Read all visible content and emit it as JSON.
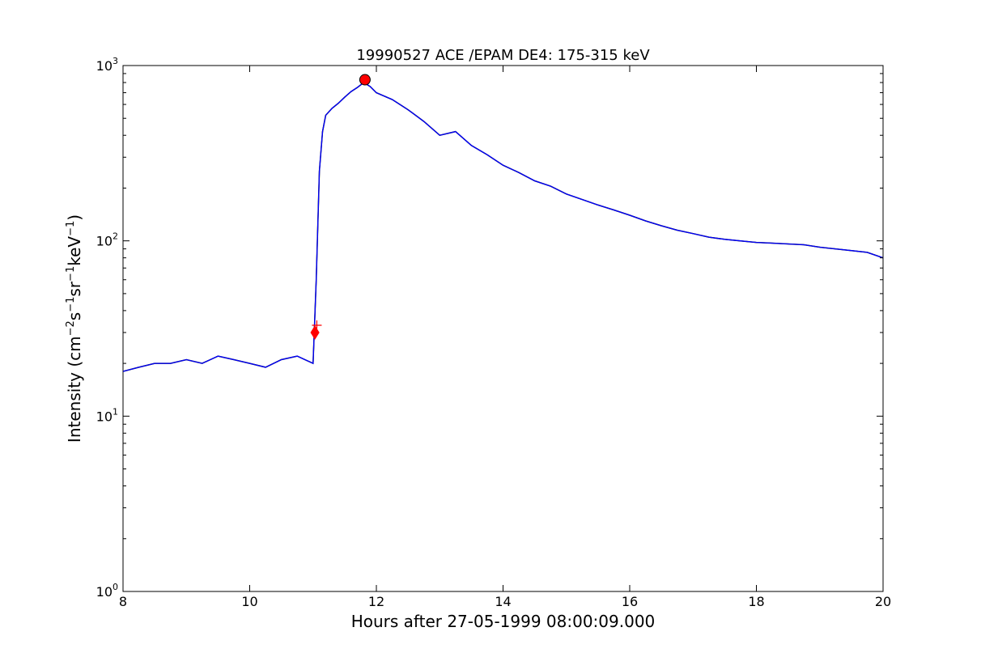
{
  "chart_data": {
    "type": "line",
    "title": "19990527 ACE /EPAM DE4: 175-315 keV",
    "xlabel": "Hours after 27-05-1999 08:00:09.000",
    "ylabel": "Intensity (cm^-2 s^-1 sr^-1 keV^-1)",
    "ylabel_parts": {
      "prefix": "Intensity (cm",
      "exp1": "−2",
      "mid1": "s",
      "exp2": "−1",
      "mid2": "sr",
      "exp3": "−1",
      "mid3": "keV",
      "exp4": "−1",
      "suffix": ")"
    },
    "xlim": [
      8,
      20
    ],
    "ylim": [
      1,
      1000
    ],
    "yscale": "log",
    "grid": false,
    "x_ticks": [
      8,
      10,
      12,
      14,
      16,
      18,
      20
    ],
    "x_tick_labels": [
      "8",
      "10",
      "12",
      "14",
      "16",
      "18",
      "20"
    ],
    "y_ticks": [
      1,
      10,
      100,
      1000
    ],
    "y_tick_labels": [
      {
        "base": "10",
        "exp": "0"
      },
      {
        "base": "10",
        "exp": "1"
      },
      {
        "base": "10",
        "exp": "2"
      },
      {
        "base": "10",
        "exp": "3"
      }
    ],
    "series": [
      {
        "role": "raw",
        "color": "#000000",
        "x": [
          8.0,
          8.25,
          8.5,
          8.75,
          9.0,
          9.25,
          9.5,
          9.75,
          10.0,
          10.25,
          10.5,
          10.75,
          11.0,
          11.05,
          11.1,
          11.15,
          11.2,
          11.3,
          11.4,
          11.5,
          11.6,
          11.7,
          11.8,
          11.9,
          12.0,
          12.25,
          12.5,
          12.75,
          13.0,
          13.25,
          13.5,
          13.75,
          14.0,
          14.25,
          14.5,
          14.75,
          15.0,
          15.25,
          15.5,
          15.75,
          16.0,
          16.25,
          16.5,
          16.75,
          17.0,
          17.25,
          17.5,
          17.75,
          18.0,
          18.25,
          18.5,
          18.75,
          19.0,
          19.25,
          19.5,
          19.75,
          20.0
        ],
        "y": [
          18,
          19,
          20,
          20,
          21,
          20,
          22,
          21,
          20,
          19,
          21,
          22,
          20,
          60,
          250,
          420,
          520,
          570,
          610,
          660,
          710,
          750,
          800,
          760,
          700,
          640,
          560,
          480,
          400,
          420,
          350,
          310,
          270,
          245,
          220,
          205,
          185,
          172,
          160,
          150,
          140,
          130,
          122,
          115,
          110,
          105,
          102,
          100,
          98,
          97,
          96,
          95,
          92,
          90,
          88,
          86,
          80
        ]
      },
      {
        "role": "smoothed",
        "color": "#0000ff",
        "x": [
          8.0,
          8.25,
          8.5,
          8.75,
          9.0,
          9.25,
          9.5,
          9.75,
          10.0,
          10.25,
          10.5,
          10.75,
          11.0,
          11.05,
          11.1,
          11.15,
          11.2,
          11.3,
          11.4,
          11.5,
          11.6,
          11.7,
          11.8,
          11.9,
          12.0,
          12.25,
          12.5,
          12.75,
          13.0,
          13.25,
          13.5,
          13.75,
          14.0,
          14.25,
          14.5,
          14.75,
          15.0,
          15.25,
          15.5,
          15.75,
          16.0,
          16.25,
          16.5,
          16.75,
          17.0,
          17.25,
          17.5,
          17.75,
          18.0,
          18.25,
          18.5,
          18.75,
          19.0,
          19.25,
          19.5,
          19.75,
          20.0
        ],
        "y": [
          18,
          19,
          20,
          20,
          21,
          20,
          22,
          21,
          20,
          19,
          21,
          22,
          20,
          60,
          250,
          420,
          520,
          570,
          610,
          660,
          710,
          750,
          800,
          760,
          700,
          640,
          560,
          480,
          400,
          420,
          350,
          310,
          270,
          245,
          220,
          205,
          185,
          172,
          160,
          150,
          140,
          130,
          122,
          115,
          110,
          105,
          102,
          100,
          98,
          97,
          96,
          95,
          92,
          90,
          88,
          86,
          80
        ]
      }
    ],
    "markers": [
      {
        "kind": "onset-diamond",
        "x": 11.03,
        "y": 30,
        "color": "#ff0000"
      },
      {
        "kind": "onset-cross",
        "x": 11.06,
        "y": 33,
        "color": "#ff0000"
      },
      {
        "kind": "peak-circle",
        "x": 11.82,
        "y": 830,
        "color": "#ff0000"
      }
    ]
  }
}
